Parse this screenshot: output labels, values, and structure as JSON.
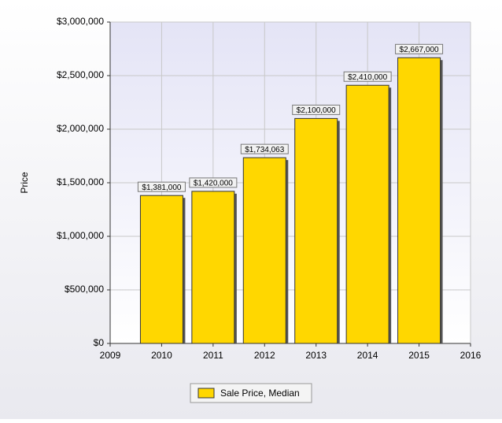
{
  "chart_data": {
    "type": "bar",
    "y_label": "Price",
    "x": [
      2010,
      2011,
      2012,
      2013,
      2014,
      2015
    ],
    "series": [
      {
        "name": "Sale Price, Median",
        "color": "#ffd700",
        "values": [
          1381000,
          1420000,
          1734063,
          2100000,
          2410000,
          2667000
        ],
        "value_labels": [
          "$1,381,000",
          "$1,420,000",
          "$1,734,063",
          "$2,100,000",
          "$2,410,000",
          "$2,667,000"
        ]
      }
    ],
    "xlim": [
      2009,
      2016
    ],
    "xticks": [
      2009,
      2010,
      2011,
      2012,
      2013,
      2014,
      2015,
      2016
    ],
    "ylim": [
      0,
      3000000
    ],
    "yticks": [
      {
        "value": 0,
        "label": "$0"
      },
      {
        "value": 500000,
        "label": "$500,000"
      },
      {
        "value": 1000000,
        "label": "$1,000,000"
      },
      {
        "value": 1500000,
        "label": "$1,500,000"
      },
      {
        "value": 2000000,
        "label": "$2,000,000"
      },
      {
        "value": 2500000,
        "label": "$2,500,000"
      },
      {
        "value": 3000000,
        "label": "$3,000,000"
      }
    ],
    "grid": true,
    "legend": "bottom"
  }
}
